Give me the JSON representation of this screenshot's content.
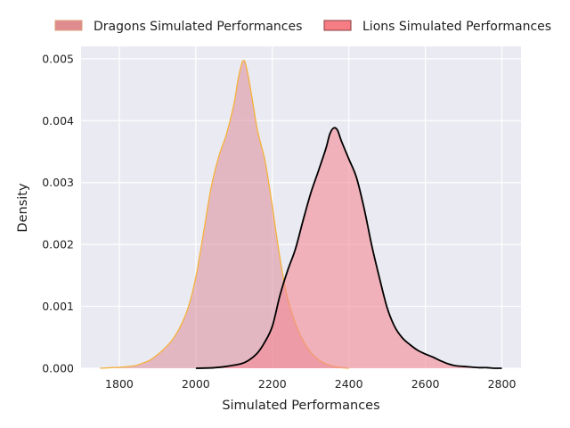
{
  "chart_data": {
    "type": "area",
    "title": "",
    "xlabel": "Simulated Performances",
    "ylabel": "Density",
    "xlim": [
      1700,
      2850
    ],
    "ylim": [
      0,
      0.0052
    ],
    "xticks": [
      1800,
      2000,
      2200,
      2400,
      2600,
      2800
    ],
    "xtick_labels": [
      "1800",
      "2000",
      "2200",
      "2400",
      "2600",
      "2800"
    ],
    "yticks": [
      0,
      0.001,
      0.002,
      0.003,
      0.004,
      0.005
    ],
    "ytick_labels": [
      "0.000",
      "0.001",
      "0.002",
      "0.003",
      "0.004",
      "0.005"
    ],
    "grid": true,
    "legend_position": "top",
    "series": [
      {
        "name": "Dragons Simulated Performances",
        "fill_color": "#dc8c9b",
        "line_color": "#f4b13a",
        "fill_opacity": 0.55,
        "x": [
          1750,
          1780,
          1810,
          1840,
          1860,
          1880,
          1900,
          1920,
          1940,
          1960,
          1980,
          2000,
          2020,
          2040,
          2060,
          2080,
          2100,
          2110,
          2120,
          2125,
          2130,
          2140,
          2150,
          2160,
          2170,
          2180,
          2190,
          2200,
          2210,
          2220,
          2230,
          2240,
          2260,
          2280,
          2300,
          2320,
          2340,
          2360,
          2380,
          2400
        ],
        "y": [
          0,
          1e-05,
          2e-05,
          4e-05,
          8e-05,
          0.00013,
          0.00022,
          0.00033,
          0.00047,
          0.00068,
          0.00098,
          0.00147,
          0.00218,
          0.00292,
          0.00342,
          0.00378,
          0.00428,
          0.00465,
          0.00492,
          0.00497,
          0.00492,
          0.00462,
          0.00425,
          0.00388,
          0.00362,
          0.00338,
          0.00302,
          0.00262,
          0.00218,
          0.00178,
          0.00142,
          0.00113,
          0.00073,
          0.00045,
          0.00026,
          0.00014,
          7e-05,
          3e-05,
          1e-05,
          0
        ]
      },
      {
        "name": "Lions Simulated Performances",
        "fill_color": "#f48b95",
        "line_color": "#000000",
        "fill_opacity": 0.6,
        "x": [
          2000,
          2050,
          2100,
          2130,
          2160,
          2180,
          2200,
          2220,
          2240,
          2260,
          2280,
          2300,
          2320,
          2340,
          2350,
          2360,
          2370,
          2380,
          2400,
          2420,
          2440,
          2460,
          2480,
          2500,
          2520,
          2540,
          2560,
          2580,
          2600,
          2620,
          2640,
          2660,
          2680,
          2700,
          2720,
          2740,
          2760,
          2780,
          2800
        ],
        "y": [
          0,
          1e-05,
          5e-05,
          0.0001,
          0.00024,
          0.00042,
          0.00068,
          0.00118,
          0.00158,
          0.00192,
          0.00238,
          0.00282,
          0.00318,
          0.00355,
          0.00378,
          0.00388,
          0.00385,
          0.00368,
          0.00338,
          0.00308,
          0.00258,
          0.00198,
          0.00146,
          0.00098,
          0.00067,
          0.00049,
          0.00038,
          0.00029,
          0.00023,
          0.00018,
          0.00012,
          7e-05,
          4e-05,
          3e-05,
          2e-05,
          1e-05,
          1e-05,
          0,
          0
        ]
      }
    ]
  }
}
